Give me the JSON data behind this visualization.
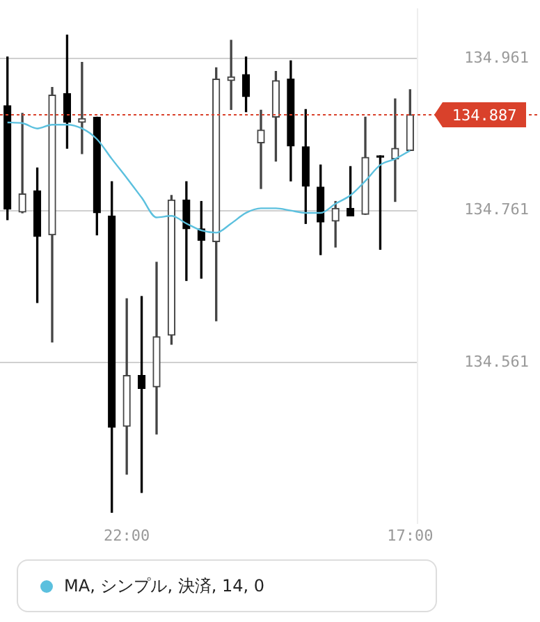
{
  "chart_data": {
    "type": "candlestick",
    "categories": [
      null,
      null,
      null,
      null,
      null,
      null,
      null,
      null,
      "22:00",
      null,
      null,
      null,
      null,
      null,
      null,
      null,
      null,
      null,
      null,
      null,
      null,
      null,
      null,
      null,
      null,
      null,
      null,
      "17:00"
    ],
    "ohlc": [
      [
        134.899,
        134.963,
        134.749,
        134.763
      ],
      [
        134.759,
        134.889,
        134.758,
        134.783
      ],
      [
        134.787,
        134.817,
        134.64,
        134.727
      ],
      [
        134.729,
        134.923,
        134.588,
        134.913
      ],
      [
        134.915,
        134.992,
        134.843,
        134.877
      ],
      [
        134.877,
        134.956,
        134.836,
        134.882
      ],
      [
        134.884,
        134.884,
        134.729,
        134.758
      ],
      [
        134.754,
        134.799,
        134.364,
        134.476
      ],
      [
        134.477,
        134.645,
        134.414,
        134.544
      ],
      [
        134.544,
        134.648,
        134.39,
        134.527
      ],
      [
        134.529,
        134.693,
        134.467,
        134.595
      ],
      [
        134.597,
        134.781,
        134.585,
        134.775
      ],
      [
        134.775,
        134.799,
        134.669,
        134.737
      ],
      [
        134.737,
        134.773,
        134.672,
        134.722
      ],
      [
        134.72,
        134.949,
        134.616,
        134.934
      ],
      [
        134.932,
        134.985,
        134.894,
        134.937
      ],
      [
        134.94,
        134.963,
        134.891,
        134.911
      ],
      [
        134.85,
        134.893,
        134.79,
        134.867
      ],
      [
        134.884,
        134.944,
        134.826,
        134.932
      ],
      [
        134.934,
        134.958,
        134.8,
        134.846
      ],
      [
        134.845,
        134.894,
        134.744,
        134.793
      ],
      [
        134.792,
        134.821,
        134.703,
        134.746
      ],
      [
        134.747,
        134.773,
        134.713,
        134.764
      ],
      [
        134.764,
        134.819,
        134.754,
        134.754
      ],
      [
        134.756,
        134.884,
        134.756,
        134.831
      ],
      [
        134.833,
        134.833,
        134.71,
        134.831
      ],
      [
        134.829,
        134.908,
        134.773,
        134.843
      ],
      [
        134.84,
        134.92,
        134.84,
        134.887
      ]
    ],
    "series": [
      {
        "name": "MA, シンプル, 決済, 14, 0",
        "type": "line",
        "color": "#5bc0de",
        "values": [
          134.877,
          134.876,
          134.869,
          134.874,
          134.874,
          134.869,
          134.855,
          134.829,
          134.804,
          134.778,
          134.752,
          134.754,
          134.744,
          134.735,
          134.732,
          134.744,
          134.758,
          134.764,
          134.764,
          134.761,
          134.758,
          134.758,
          134.77,
          134.781,
          134.8,
          134.821,
          134.829,
          134.84
        ]
      }
    ],
    "ylim": [
      134.35,
      135.026
    ],
    "yticks": [
      134.561,
      134.761,
      134.961
    ],
    "grid": "y",
    "legend": "bottom",
    "ref_lines": [
      {
        "axis": "y",
        "value": 134.887,
        "label": "134.887",
        "color": "#d9412b",
        "line_style": "dotted"
      }
    ]
  }
}
